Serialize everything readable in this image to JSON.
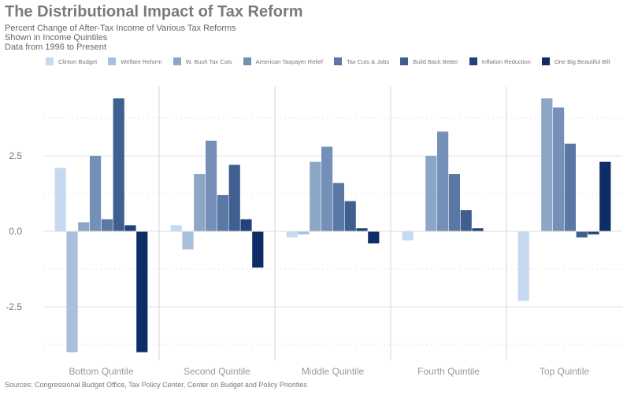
{
  "header": {
    "title": "The Distributional Impact of Tax Reform",
    "subtitle_lines": [
      "Percent Change of After-Tax Income of Various Tax Reforms",
      "Shown in Income Quintiles",
      "Data from 1996 to Present"
    ]
  },
  "footer": {
    "source": "Sources: Congressional Budget Office, Tax Policy Center, Center on Budget and Policy Priorities"
  },
  "colors": [
    "#c6d9f0",
    "#a9bfdc",
    "#8ca6c6",
    "#7590b8",
    "#5a78a5",
    "#3f5f91",
    "#23427a",
    "#0e2d66"
  ],
  "chart_data": {
    "type": "bar",
    "title": "The Distributional Impact of Tax Reform",
    "categories": [
      "Bottom Quintile",
      "Second Quintile",
      "Middle Quintile",
      "Fourth Quintile",
      "Top Quintile"
    ],
    "ylim": [
      -4.4,
      4.8
    ],
    "yticks": [
      -2.5,
      0.0,
      2.5
    ],
    "ytick_labels": [
      "-2.5",
      "0.0",
      "2.5"
    ],
    "grid": true,
    "legend_position": "top",
    "series": [
      {
        "name": "Clinton Budget",
        "values": [
          2.1,
          0.2,
          -0.2,
          -0.3,
          -2.3
        ]
      },
      {
        "name": "Welfare Reform",
        "values": [
          -4.0,
          -0.6,
          -0.1,
          0.0,
          0.0
        ]
      },
      {
        "name": "W. Bush Tax Cuts",
        "values": [
          0.3,
          1.9,
          2.3,
          2.5,
          4.4
        ]
      },
      {
        "name": "American Taxpayer Relief",
        "values": [
          2.5,
          3.0,
          2.8,
          3.3,
          4.1
        ]
      },
      {
        "name": "Tax Cuts & Jobs",
        "values": [
          0.4,
          1.2,
          1.6,
          1.9,
          2.9
        ]
      },
      {
        "name": "Build Back Better",
        "values": [
          4.4,
          2.2,
          1.0,
          0.7,
          -0.2
        ]
      },
      {
        "name": "Inflation Reduction",
        "values": [
          0.2,
          0.4,
          0.1,
          0.1,
          -0.1
        ]
      },
      {
        "name": "One Big Beautiful Bill",
        "values": [
          -4.0,
          -1.2,
          -0.4,
          0.0,
          2.3
        ]
      }
    ]
  }
}
